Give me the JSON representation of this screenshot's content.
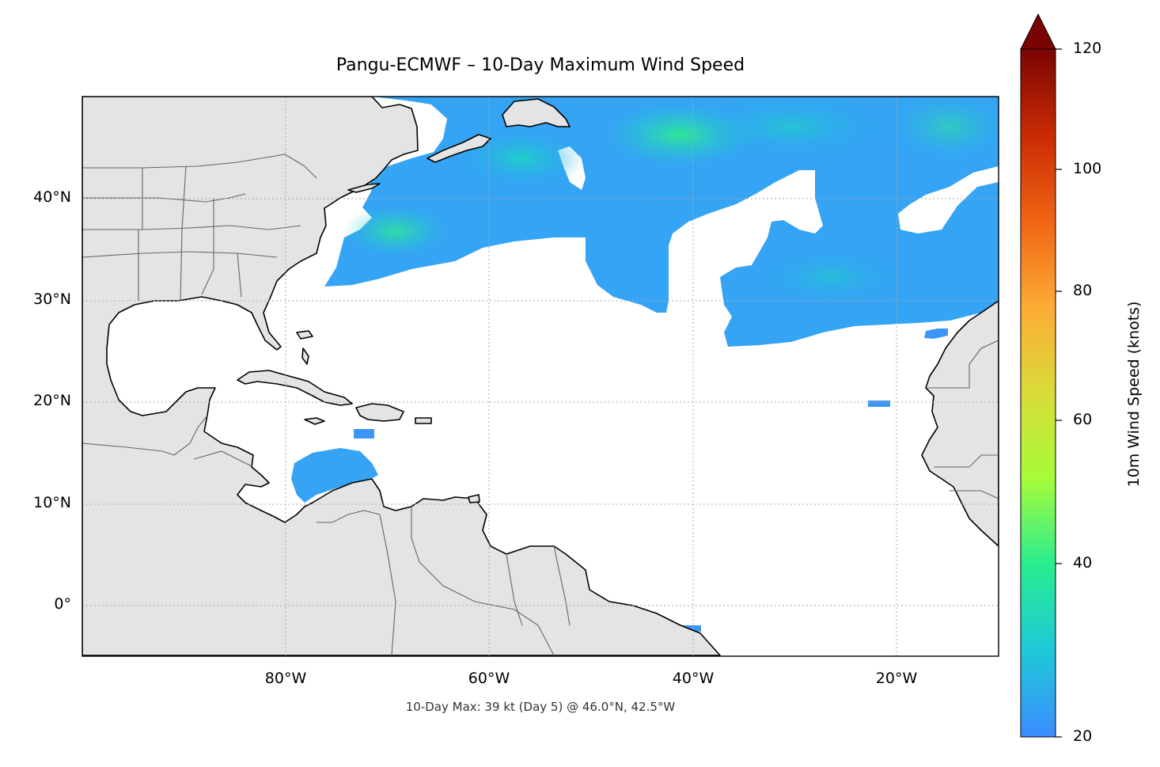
{
  "title": "Pangu-ECMWF – 10-Day Maximum Wind Speed",
  "subtitle": "10-Day Max: 39 kt (Day 5) @ 46.0°N, 42.5°W",
  "map": {
    "extent": {
      "lon_min": -100,
      "lon_max": -10,
      "lat_min": -5,
      "lat_max": 50
    },
    "x_ticks": [
      {
        "lon": -80,
        "label": "80°W"
      },
      {
        "lon": -60,
        "label": "60°W"
      },
      {
        "lon": -40,
        "label": "40°W"
      },
      {
        "lon": -20,
        "label": "20°W"
      }
    ],
    "y_ticks": [
      {
        "lat": 40,
        "label": "40°N"
      },
      {
        "lat": 30,
        "label": "30°N"
      },
      {
        "lat": 20,
        "label": "20°N"
      },
      {
        "lat": 10,
        "label": "10°N"
      },
      {
        "lat": 0,
        "label": "0°"
      }
    ],
    "land_color": "#e4e4e4",
    "ocean_color": "#ffffff",
    "gridlines": true,
    "max_point": {
      "lat": 46.0,
      "lon": -42.5,
      "value_kt": 39,
      "day": 5
    }
  },
  "colorbar": {
    "label": "10m Wind Speed (knots)",
    "min": 20,
    "max": 120,
    "extend": "max",
    "ticks": [
      "20",
      "40",
      "60",
      "80",
      "100",
      "120"
    ],
    "colormap": [
      "#3c8dff",
      "#1fc8d8",
      "#29ed90",
      "#a6fb3a",
      "#d9db3a",
      "#fdab36",
      "#f16514",
      "#c92b04",
      "#7a0403"
    ]
  }
}
